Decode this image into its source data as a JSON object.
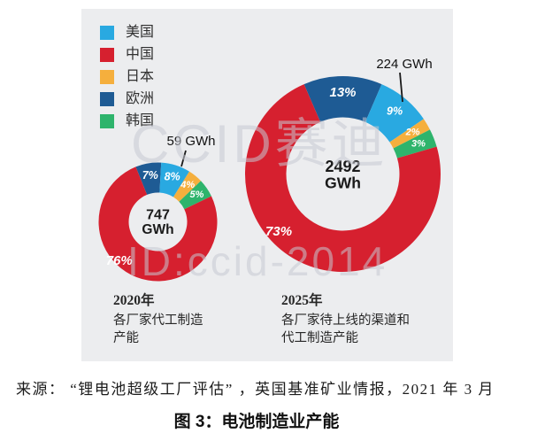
{
  "legend": {
    "items": [
      {
        "label": "美国",
        "color": "#29A9E1"
      },
      {
        "label": "中国",
        "color": "#D6202F"
      },
      {
        "label": "日本",
        "color": "#F5AF3D"
      },
      {
        "label": "欧洲",
        "color": "#1E5B94"
      },
      {
        "label": "韩国",
        "color": "#2EB46C"
      }
    ]
  },
  "chart_data": {
    "type": "donut-pair",
    "unit": "GWh",
    "charts": [
      {
        "year_label": "2020年",
        "desc_lines": [
          "各厂家代工制造",
          "产能"
        ],
        "center_value": "747",
        "center_unit": "GWh",
        "total_gwh": 747,
        "callout": {
          "text": "59 GWh",
          "target": "美国"
        },
        "start_angle_deg": -22,
        "slices": [
          {
            "label": "欧洲",
            "pct": 7
          },
          {
            "label": "美国",
            "pct": 8
          },
          {
            "label": "日本",
            "pct": 4
          },
          {
            "label": "韩国",
            "pct": 5
          },
          {
            "label": "中国",
            "pct": 76,
            "label_angle_deg": 225,
            "label_r_frac": 0.85
          }
        ]
      },
      {
        "year_label": "2025年",
        "desc_lines": [
          "各厂家待上线的渠道和",
          "代工制造产能"
        ],
        "center_value": "2492",
        "center_unit": "GWh",
        "total_gwh": 2492,
        "callout": {
          "text": "224 GWh",
          "target": "美国"
        },
        "start_angle_deg": -23.4,
        "slices": [
          {
            "label": "欧洲",
            "pct": 13
          },
          {
            "label": "美国",
            "pct": 9
          },
          {
            "label": "日本",
            "pct": 2
          },
          {
            "label": "韩国",
            "pct": 3
          },
          {
            "label": "中国",
            "pct": 73,
            "label_angle_deg": 228,
            "label_r_frac": 0.72
          }
        ]
      }
    ]
  },
  "watermarks": [
    "CCID赛迪",
    "ID:ccid-2014"
  ],
  "source_line": "来源： “锂电池超级工厂评估” ，英国基准矿业情报，2021 年 3 月",
  "caption": "图 3：电池制造业产能"
}
